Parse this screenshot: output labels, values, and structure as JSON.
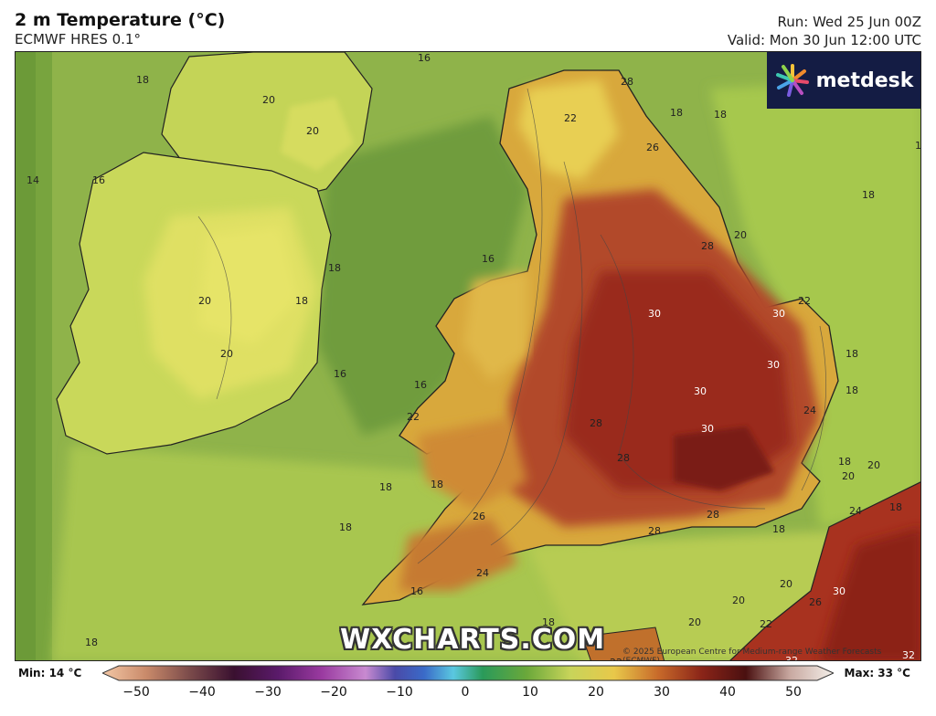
{
  "header": {
    "title": "2 m Temperature (°C)",
    "model": "ECMWF HRES 0.1°",
    "run": "Run: Wed 25 Jun 00Z",
    "valid": "Valid: Mon 30 Jun 12:00 UTC"
  },
  "logo": {
    "text": "metdesk",
    "icon": "metdesk-starburst-icon"
  },
  "watermark": "WXCHARTS.COM",
  "credit": "© 2025 European Centre for Medium-range Weather Forecasts (ECMWF)",
  "legend": {
    "min_label": "Min: 14 °C",
    "max_label": "Max: 33 °C",
    "ticks": [
      "−50",
      "−40",
      "−30",
      "−20",
      "−10",
      "0",
      "10",
      "20",
      "30",
      "40",
      "50"
    ]
  },
  "map": {
    "region": "British Isles",
    "contour_labels": [
      "16",
      "18",
      "20",
      "14",
      "16",
      "18",
      "20",
      "20",
      "18",
      "16",
      "20",
      "16",
      "16",
      "22",
      "18",
      "18",
      "18",
      "16",
      "22",
      "28",
      "18",
      "18",
      "26",
      "28",
      "28",
      "20",
      "30",
      "30",
      "30",
      "30",
      "22",
      "18",
      "30",
      "18",
      "24",
      "28",
      "28",
      "28",
      "20",
      "20",
      "26",
      "24",
      "18",
      "18",
      "20",
      "26",
      "18",
      "20",
      "20",
      "22",
      "30",
      "22",
      "32",
      "32",
      "1",
      "18",
      "18",
      "18",
      "24"
    ]
  }
}
